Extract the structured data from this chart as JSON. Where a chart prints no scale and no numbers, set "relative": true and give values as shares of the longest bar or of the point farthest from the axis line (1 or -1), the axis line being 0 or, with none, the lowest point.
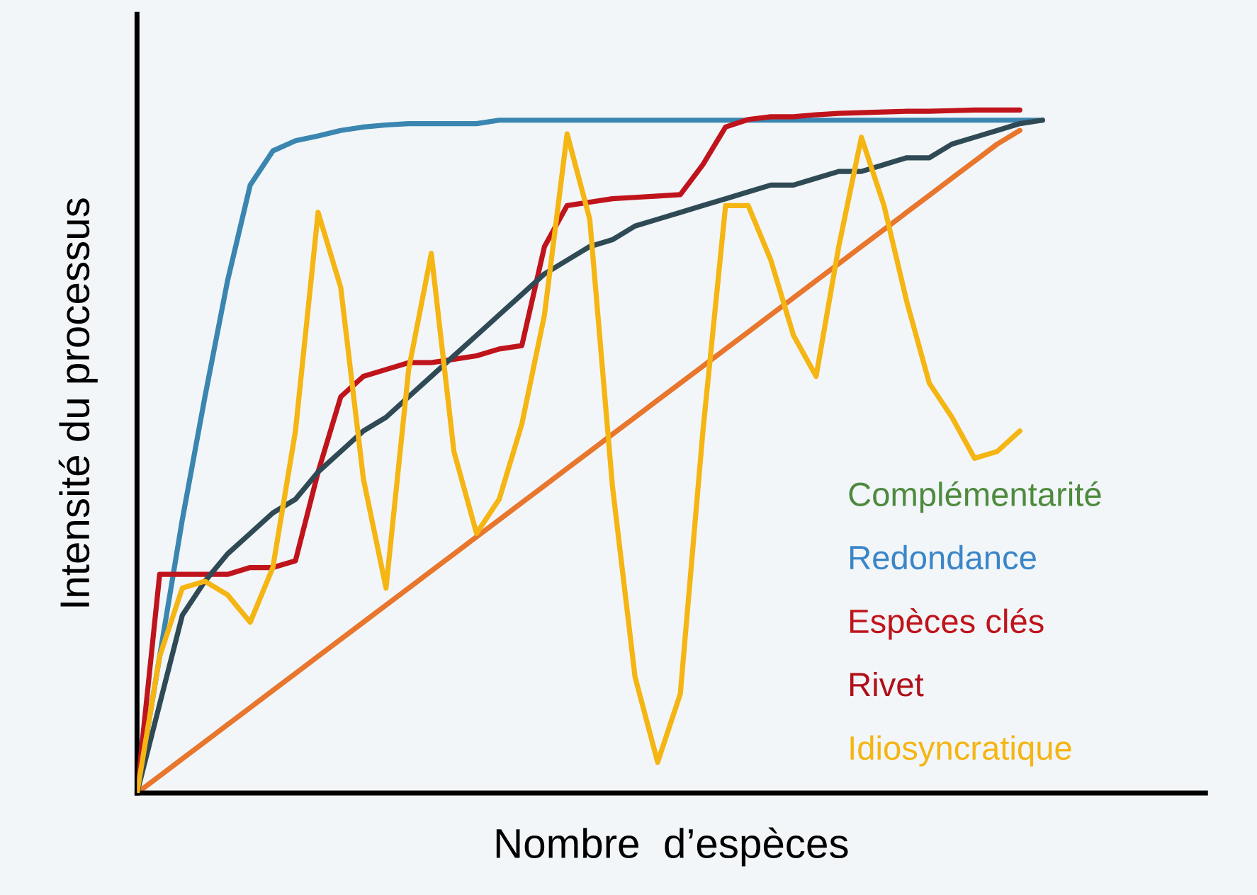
{
  "chart_data": {
    "type": "line",
    "relative": true,
    "xlabel": "Nombre  d’espèces",
    "ylabel": "Intensité du processus",
    "marker": "none",
    "line_style": "solid",
    "annotations": [
      "Complémentarité",
      "Redondance",
      "Espèces clés",
      "Rivet",
      "Idiosyncratique"
    ],
    "categories": [
      null,
      null,
      null,
      null,
      null,
      null,
      null,
      null,
      null,
      null,
      null,
      null,
      null,
      null,
      null,
      null,
      null,
      null,
      null,
      null,
      null,
      null,
      null,
      null,
      null,
      null,
      null,
      null,
      null,
      null,
      null,
      null,
      null,
      null,
      null,
      null,
      null,
      null,
      null,
      null,
      null
    ],
    "series": [
      {
        "color": "#e8762c",
        "values": [
          0,
          0.025,
          0.05,
          0.075,
          0.1,
          0.125,
          0.15,
          0.175,
          0.2,
          0.225,
          0.25,
          0.275,
          0.3,
          0.325,
          0.35,
          0.375,
          0.4,
          0.425,
          0.45,
          0.475,
          0.5,
          0.525,
          0.55,
          0.575,
          0.6,
          0.625,
          0.65,
          0.675,
          0.7,
          0.725,
          0.75,
          0.775,
          0.8,
          0.825,
          0.85,
          0.875,
          0.9,
          0.925,
          0.95,
          0.97,
          null
        ]
      },
      {
        "color": "#3a86b0",
        "values": [
          0,
          0.2,
          0.4,
          0.58,
          0.75,
          0.89,
          0.94,
          0.955,
          0.962,
          0.97,
          0.975,
          0.978,
          0.98,
          0.98,
          0.98,
          0.98,
          0.985,
          0.985,
          0.985,
          0.985,
          0.985,
          0.985,
          0.985,
          0.985,
          0.985,
          0.985,
          0.985,
          0.985,
          0.985,
          0.985,
          0.985,
          0.985,
          0.985,
          0.985,
          0.985,
          0.985,
          0.985,
          0.985,
          0.985,
          0.985,
          0.985
        ]
      },
      {
        "color": "#c0141c",
        "values": [
          0,
          0.32,
          0.32,
          0.32,
          0.32,
          0.33,
          0.33,
          0.34,
          0.47,
          0.58,
          0.61,
          0.62,
          0.63,
          0.63,
          0.635,
          0.64,
          0.65,
          0.655,
          0.8,
          0.86,
          0.865,
          0.87,
          0.872,
          0.874,
          0.876,
          0.92,
          0.975,
          0.986,
          0.99,
          0.99,
          0.993,
          0.995,
          0.996,
          0.997,
          0.998,
          0.998,
          0.999,
          1,
          1,
          1,
          null
        ]
      },
      {
        "color": "#2f4a55",
        "values": [
          0,
          0.13,
          0.26,
          0.31,
          0.35,
          0.38,
          0.41,
          0.43,
          0.47,
          0.5,
          0.53,
          0.55,
          0.58,
          0.61,
          0.64,
          0.67,
          0.7,
          0.73,
          0.76,
          0.78,
          0.8,
          0.81,
          0.83,
          0.84,
          0.85,
          0.86,
          0.87,
          0.88,
          0.89,
          0.89,
          0.9,
          0.91,
          0.91,
          0.92,
          0.93,
          0.93,
          0.95,
          0.96,
          0.97,
          0.98,
          0.985
        ]
      },
      {
        "color": "#f5b512",
        "values": [
          0,
          0.2,
          0.3,
          0.31,
          0.29,
          0.25,
          0.33,
          0.53,
          0.85,
          0.74,
          0.46,
          0.3,
          0.62,
          0.79,
          0.5,
          0.38,
          0.43,
          0.54,
          0.7,
          0.965,
          0.84,
          0.45,
          0.17,
          0.045,
          0.145,
          0.53,
          0.86,
          0.86,
          0.78,
          0.67,
          0.61,
          0.8,
          0.96,
          0.86,
          0.72,
          0.6,
          0.55,
          0.49,
          0.5,
          0.53,
          null
        ]
      }
    ]
  }
}
